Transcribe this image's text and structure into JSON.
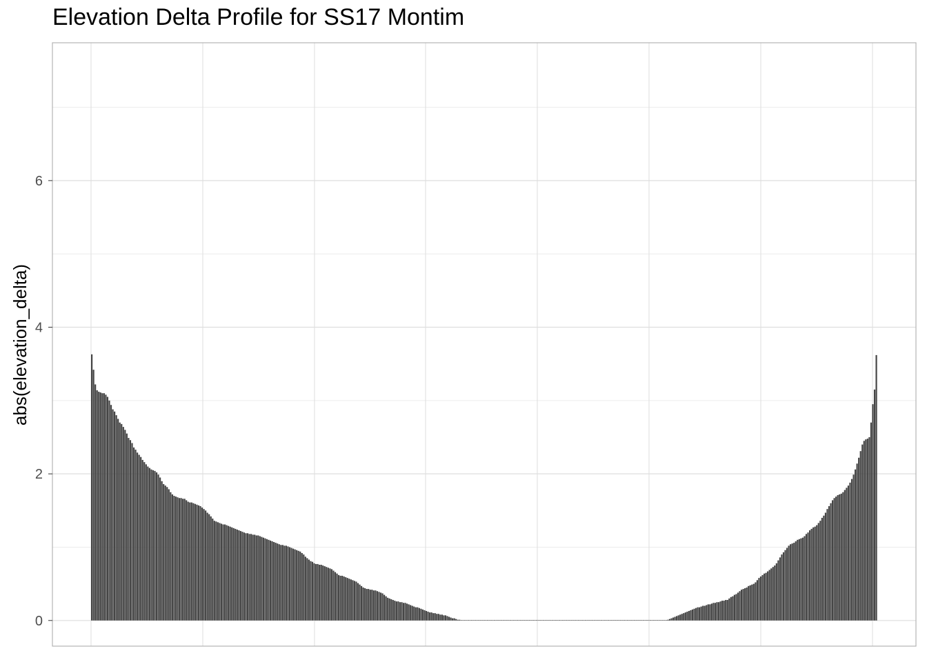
{
  "chart_data": {
    "type": "bar",
    "title": "Elevation Delta Profile for SS17 Montim",
    "xlabel": "",
    "ylabel": "abs(elevation_delta)",
    "x_tick_labels": [],
    "y_ticks": [
      0,
      2,
      4,
      6
    ],
    "y_tick_labels": [
      "0",
      "2",
      "4",
      "6"
    ],
    "ylim": [
      -0.35,
      7.88
    ],
    "grid": true,
    "bar_color": "#444444",
    "series": [
      {
        "values": [
          3.63,
          3.42,
          3.22,
          3.14,
          3.12,
          3.11,
          3.1,
          3.1,
          3.08,
          3.05,
          3.0,
          2.94,
          2.88,
          2.85,
          2.8,
          2.75,
          2.7,
          2.68,
          2.64,
          2.6,
          2.55,
          2.49,
          2.46,
          2.42,
          2.36,
          2.33,
          2.29,
          2.26,
          2.23,
          2.19,
          2.16,
          2.13,
          2.1,
          2.08,
          2.06,
          2.05,
          2.04,
          2.02,
          1.99,
          1.95,
          1.9,
          1.86,
          1.84,
          1.82,
          1.79,
          1.75,
          1.72,
          1.7,
          1.69,
          1.68,
          1.67,
          1.67,
          1.66,
          1.66,
          1.64,
          1.62,
          1.61,
          1.61,
          1.6,
          1.59,
          1.58,
          1.57,
          1.56,
          1.54,
          1.52,
          1.5,
          1.47,
          1.45,
          1.42,
          1.39,
          1.36,
          1.35,
          1.34,
          1.33,
          1.32,
          1.31,
          1.31,
          1.3,
          1.29,
          1.28,
          1.27,
          1.26,
          1.25,
          1.24,
          1.23,
          1.22,
          1.21,
          1.2,
          1.19,
          1.19,
          1.18,
          1.18,
          1.17,
          1.17,
          1.16,
          1.16,
          1.15,
          1.14,
          1.13,
          1.12,
          1.11,
          1.1,
          1.09,
          1.08,
          1.07,
          1.06,
          1.05,
          1.04,
          1.03,
          1.03,
          1.02,
          1.02,
          1.01,
          1.0,
          0.99,
          0.98,
          0.97,
          0.96,
          0.95,
          0.94,
          0.92,
          0.9,
          0.87,
          0.85,
          0.83,
          0.81,
          0.8,
          0.78,
          0.77,
          0.77,
          0.76,
          0.76,
          0.75,
          0.74,
          0.73,
          0.72,
          0.71,
          0.7,
          0.68,
          0.66,
          0.64,
          0.62,
          0.61,
          0.61,
          0.6,
          0.59,
          0.58,
          0.57,
          0.56,
          0.55,
          0.54,
          0.53,
          0.51,
          0.49,
          0.47,
          0.45,
          0.44,
          0.43,
          0.43,
          0.42,
          0.42,
          0.41,
          0.41,
          0.4,
          0.39,
          0.38,
          0.37,
          0.35,
          0.33,
          0.31,
          0.3,
          0.29,
          0.28,
          0.27,
          0.26,
          0.26,
          0.25,
          0.25,
          0.24,
          0.24,
          0.23,
          0.22,
          0.21,
          0.2,
          0.19,
          0.18,
          0.18,
          0.17,
          0.16,
          0.15,
          0.14,
          0.13,
          0.12,
          0.11,
          0.11,
          0.1,
          0.1,
          0.09,
          0.09,
          0.08,
          0.08,
          0.07,
          0.07,
          0.06,
          0.05,
          0.04,
          0.03,
          0.03,
          0.02,
          0.01,
          0.01,
          0.005,
          0.005,
          0.005,
          0.005,
          0.005,
          0.005,
          0.005,
          0.005,
          0.005,
          0.005,
          0.005,
          0.005,
          0.005,
          0.005,
          0.005,
          0.005,
          0.005,
          0.005,
          0.005,
          0.005,
          0.005,
          0.005,
          0.005,
          0.005,
          0.005,
          0.005,
          0.005,
          0.005,
          0.005,
          0.005,
          0.005,
          0.005,
          0.005,
          0.005,
          0.005,
          0.005,
          0.005,
          0.005,
          0.005,
          0.005,
          0.005,
          0.005,
          0.005,
          0.005,
          0.005,
          0.005,
          0.005,
          0.005,
          0.005,
          0.005,
          0.005,
          0.005,
          0.005,
          0.005,
          0.005,
          0.005,
          0.005,
          0.005,
          0.005,
          0.005,
          0.005,
          0.005,
          0.005,
          0.005,
          0.005,
          0.005,
          0.005,
          0.005,
          0.005,
          0.005,
          0.005,
          0.005,
          0.005,
          0.005,
          0.005,
          0.005,
          0.005,
          0.005,
          0.005,
          0.005,
          0.005,
          0.005,
          0.005,
          0.005,
          0.005,
          0.005,
          0.005,
          0.005,
          0.005,
          0.005,
          0.005,
          0.005,
          0.005,
          0.005,
          0.005,
          0.005,
          0.005,
          0.005,
          0.005,
          0.005,
          0.005,
          0.005,
          0.005,
          0.005,
          0.005,
          0.005,
          0.005,
          0.005,
          0.005,
          0.005,
          0.005,
          0.005,
          0.005,
          0.005,
          0.005,
          0.005,
          0.005,
          0.005,
          0.01,
          0.02,
          0.03,
          0.04,
          0.05,
          0.06,
          0.07,
          0.08,
          0.09,
          0.1,
          0.11,
          0.12,
          0.13,
          0.14,
          0.15,
          0.16,
          0.17,
          0.18,
          0.18,
          0.19,
          0.2,
          0.2,
          0.21,
          0.22,
          0.22,
          0.23,
          0.24,
          0.24,
          0.25,
          0.25,
          0.26,
          0.27,
          0.27,
          0.28,
          0.28,
          0.3,
          0.32,
          0.33,
          0.35,
          0.36,
          0.38,
          0.4,
          0.42,
          0.43,
          0.44,
          0.45,
          0.47,
          0.48,
          0.49,
          0.5,
          0.52,
          0.55,
          0.58,
          0.6,
          0.62,
          0.64,
          0.65,
          0.67,
          0.69,
          0.71,
          0.73,
          0.75,
          0.78,
          0.82,
          0.86,
          0.9,
          0.93,
          0.96,
          0.99,
          1.02,
          1.04,
          1.05,
          1.06,
          1.08,
          1.1,
          1.11,
          1.12,
          1.13,
          1.15,
          1.18,
          1.2,
          1.23,
          1.25,
          1.27,
          1.28,
          1.3,
          1.33,
          1.36,
          1.4,
          1.43,
          1.47,
          1.52,
          1.56,
          1.6,
          1.64,
          1.67,
          1.69,
          1.71,
          1.72,
          1.73,
          1.75,
          1.78,
          1.81,
          1.84,
          1.88,
          1.93,
          1.99,
          2.06,
          2.14,
          2.22,
          2.31,
          2.4,
          2.45,
          2.47,
          2.48,
          2.5,
          2.7,
          2.95,
          3.15,
          3.62
        ]
      }
    ]
  }
}
